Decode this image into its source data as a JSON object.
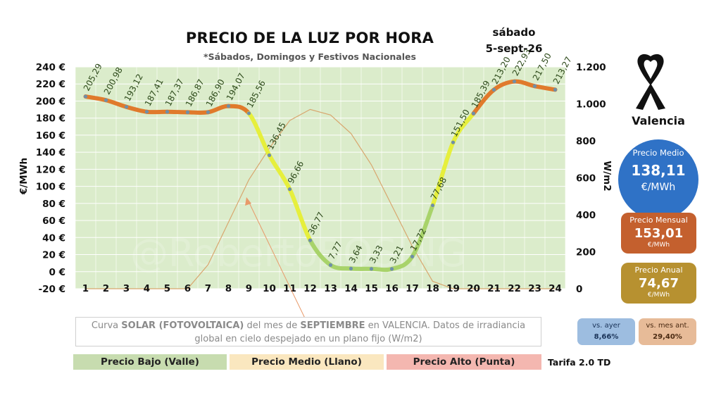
{
  "header": {
    "title": "PRECIO DE LA LUZ POR HORA",
    "subtitle": "*Sábados, Domingos y Festivos Nacionales",
    "day": "sábado",
    "date": "5-sept-26"
  },
  "sidebar": {
    "city": "Valencia",
    "avg": {
      "label": "Precio Medio",
      "value": "138,11",
      "unit": "€/MWh"
    },
    "monthly": {
      "label": "Precio Mensual",
      "value": "153,01",
      "unit": "€/MWh"
    },
    "annual": {
      "label": "Precio Anual",
      "value": "74,67",
      "unit": "€/MWh"
    },
    "vs_yesterday": {
      "label": "vs. ayer",
      "value": "8,66%"
    },
    "vs_month": {
      "label": "vs. mes ant.",
      "value": "29,40%"
    }
  },
  "note": {
    "p1": "Curva ",
    "b1": "SOLAR (FOTOVOLTAICA)",
    "p2": " del mes de ",
    "b2": "SEPTIEMBRE",
    "p3": " en VALENCIA. Datos de irradiancia global en cielo despejado en un plano fijo (W/m2)"
  },
  "legend": {
    "low": "Precio Bajo (Valle)",
    "mid": "Precio Medio (Llano)",
    "high": "Precio Alto (Punta)",
    "tariff": "Tarifa 2.0 TD"
  },
  "watermark": "@RobertoBOSING",
  "colors": {
    "plot_bg": "#dbeccb",
    "grid": "#ffffff",
    "solar": "#d8a66e",
    "low": "#a8d36a",
    "mid": "#e6ef3c",
    "high": "#e07a2c",
    "marker": "#6f8fa8",
    "arrow": "#e89a6a"
  },
  "chart_data": {
    "type": "line",
    "x": [
      1,
      2,
      3,
      4,
      5,
      6,
      7,
      8,
      9,
      10,
      11,
      12,
      13,
      14,
      15,
      16,
      17,
      18,
      19,
      20,
      21,
      22,
      23,
      24
    ],
    "x_tick_labels": [
      "1",
      "2",
      "3",
      "4",
      "5",
      "6",
      "7",
      "8",
      "9",
      "10",
      "11",
      "12",
      "13",
      "14",
      "15",
      "16",
      "17",
      "18",
      "19",
      "20",
      "21",
      "22",
      "23",
      "24"
    ],
    "ylabel": "€/MWh",
    "ylabel2": "W/m2",
    "ylim": [
      -20,
      240
    ],
    "y_ticks": [
      -20,
      0,
      20,
      40,
      60,
      80,
      100,
      120,
      140,
      160,
      180,
      200,
      220,
      240
    ],
    "y_tick_labels": [
      "-20 €",
      "0 €",
      "20 €",
      "40 €",
      "60 €",
      "80 €",
      "100 €",
      "120 €",
      "140 €",
      "160 €",
      "180 €",
      "200 €",
      "220 €",
      "240 €"
    ],
    "y2lim": [
      0,
      1200
    ],
    "y2_ticks": [
      0,
      200,
      400,
      600,
      800,
      1000,
      1200
    ],
    "y2_tick_labels": [
      "0",
      "200",
      "400",
      "600",
      "800",
      "1.000",
      "1.200"
    ],
    "grid": true,
    "series": [
      {
        "values": [
          205.29,
          200.98,
          193.12,
          187.41,
          187.37,
          186.87,
          186.9,
          194.07,
          185.56,
          136.45,
          96.66,
          36.77,
          7.77,
          3.64,
          3.33,
          3.21,
          17.72,
          77.68,
          151.5,
          185.39,
          213.2,
          222.93,
          217.5,
          213.27
        ],
        "labels": [
          "205,29",
          "200,98",
          "193,12",
          "187,41",
          "187,37",
          "186,87",
          "186,90",
          "194,07",
          "185,56",
          "136,45",
          "96,66",
          "36,77",
          "7,77",
          "3,64",
          "3,33",
          "3,21",
          "17,72",
          "77,68",
          "151,50",
          "185,39",
          "213,20",
          "222,93",
          "217,50",
          "213,27"
        ]
      },
      {
        "axis": "secondary",
        "values": [
          0,
          0,
          0,
          0,
          0,
          0,
          130,
          360,
          590,
          760,
          910,
          970,
          940,
          840,
          670,
          450,
          230,
          40,
          0,
          0,
          0,
          0,
          0,
          0
        ]
      }
    ]
  }
}
